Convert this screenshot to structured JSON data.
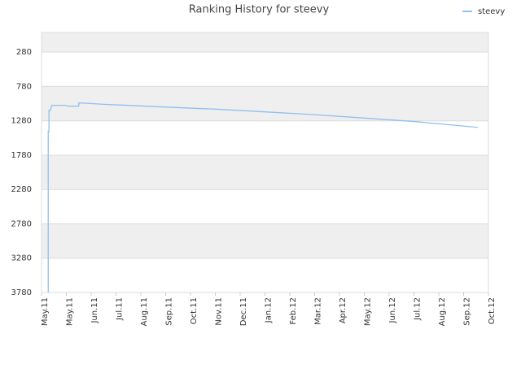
{
  "chart_data": {
    "type": "line",
    "title": "Ranking History for steevy",
    "x": [
      0.27,
      0.27,
      0.3,
      0.3,
      0.37,
      0.4,
      0.43,
      1.0,
      1.03,
      1.5,
      1.5,
      1.83,
      2.5,
      3.5,
      5,
      7,
      9,
      11,
      13,
      15,
      16.5,
      17.57
    ],
    "series": [
      {
        "name": "steevy",
        "color": "#90bff0",
        "values": [
          3780,
          1435,
          1435,
          1125,
          1125,
          1060,
          1054,
          1054,
          1066,
          1066,
          1018,
          1025,
          1040,
          1055,
          1080,
          1110,
          1150,
          1190,
          1240,
          1290,
          1340,
          1375
        ]
      }
    ],
    "xlim": [
      0,
      18
    ],
    "xticks": [
      {
        "value": 0,
        "label": "May.11"
      },
      {
        "value": 1,
        "label": "May.11"
      },
      {
        "value": 2,
        "label": "Jun.11"
      },
      {
        "value": 3,
        "label": "Jul.11"
      },
      {
        "value": 4,
        "label": "Aug.11"
      },
      {
        "value": 5,
        "label": "Sep.11"
      },
      {
        "value": 6,
        "label": "Oct.11"
      },
      {
        "value": 7,
        "label": "Nov.11"
      },
      {
        "value": 8,
        "label": "Dec.11"
      },
      {
        "value": 9,
        "label": "Jan.12"
      },
      {
        "value": 10,
        "label": "Feb.12"
      },
      {
        "value": 11,
        "label": "Mar.12"
      },
      {
        "value": 12,
        "label": "Apr.12"
      },
      {
        "value": 13,
        "label": "May.12"
      },
      {
        "value": 14,
        "label": "Jun.12"
      },
      {
        "value": 15,
        "label": "Jul.12"
      },
      {
        "value": 16,
        "label": "Aug.12"
      },
      {
        "value": 17,
        "label": "Sep.12"
      },
      {
        "value": 18,
        "label": "Oct.12"
      }
    ],
    "ylim": [
      3780,
      -6
    ],
    "yticks": [
      280,
      780,
      1280,
      1780,
      2280,
      2780,
      3280,
      3780
    ],
    "grid": true,
    "legend": "top-right"
  }
}
